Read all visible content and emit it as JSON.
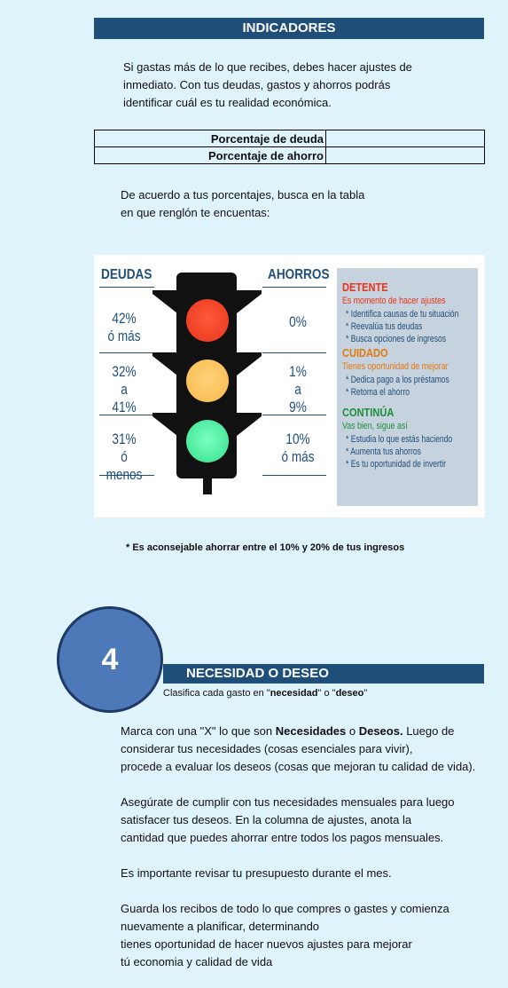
{
  "indicadores": {
    "title": "INDICADORES",
    "intro_lines": [
      "Si gastas más de lo que recibes, debes hacer ajustes de",
      "inmediato. Con tus deudas, gastos y ahorros podrás",
      "identificar cuál es tu realidad económica."
    ],
    "rows": [
      {
        "label": "Porcentaje de deuda",
        "value": ""
      },
      {
        "label": "Porcentaje de ahorro",
        "value": ""
      }
    ],
    "accord_lines": [
      "De acuerdo a tus porcentajes, busca en la tabla",
      "en que renglón te encuentas:"
    ]
  },
  "semaforo": {
    "deudas_header": "DEUDAS",
    "ahorros_header": "AHORROS",
    "deudas": [
      [
        "42%",
        "ó más"
      ],
      [
        "32%",
        "a",
        "41%"
      ],
      [
        "31%",
        "ó menos"
      ]
    ],
    "ahorros": [
      [
        "0%"
      ],
      [
        "1%",
        "a",
        "9%"
      ],
      [
        "10%",
        "ó más"
      ]
    ],
    "colors": {
      "red": "#e8341c",
      "yellow": "#f7b94a",
      "green": "#35e08c",
      "navy": "#1f4e79"
    },
    "panel": {
      "detente": {
        "head": "DETENTE",
        "sub": "Es momento de hacer ajustes",
        "items": [
          "* Identifica causas de tu situación",
          "* Reevalúa tus deudas",
          "* Busca opciones de ingresos"
        ]
      },
      "cuidado": {
        "head": "CUIDADO",
        "sub": "Tienes oportunidad de mejorar",
        "items": [
          "* Dedica pago a los préstamos",
          "* Retoma el ahorro"
        ]
      },
      "continua": {
        "head": "CONTINÚA",
        "sub": "Vas bien, sigue así",
        "items": [
          "* Estudia lo que estás haciendo",
          "* Aumenta tus ahorros",
          "* Es tu oportunidad de invertir"
        ]
      }
    }
  },
  "note": "* Es aconsejable ahorrar entre el 10% y 20% de tus ingresos",
  "section4": {
    "number": "4",
    "title": "NECESIDAD O DESEO",
    "clasifica_pre": "Clasifica cada gasto en \"",
    "clasifica_b1": "necesidad",
    "clasifica_mid": "\" o \"",
    "clasifica_b2": "deseo",
    "clasifica_post": "\"",
    "p1_pre": "Marca con una \"X\" lo que son ",
    "p1_b1": "Necesidades",
    "p1_mid": " o ",
    "p1_b2": "Deseos.",
    "p1_post": " Luego de",
    "p1_lines": [
      "considerar tus necesidades (cosas esenciales para vivir),",
      "procede a evaluar los deseos (cosas que mejoran tu calidad de vida)."
    ],
    "p2_lines": [
      "Asegúrate de cumplir con tus necesidades mensuales para luego",
      "satisfacer tus deseos. En la columna de ajustes, anota la",
      "cantidad que puedes ahorrar entre todos los  pagos mensuales."
    ],
    "p3": "Es importante revisar tu presupuesto durante el mes.",
    "p4_lines": [
      "Guarda los recibos de todo lo que compres o gastes  y comienza",
      "nuevamente a planificar, determinando",
      "tienes oportunidad de hacer nuevos ajustes para mejorar",
      "tú economia y calidad de vida"
    ]
  }
}
